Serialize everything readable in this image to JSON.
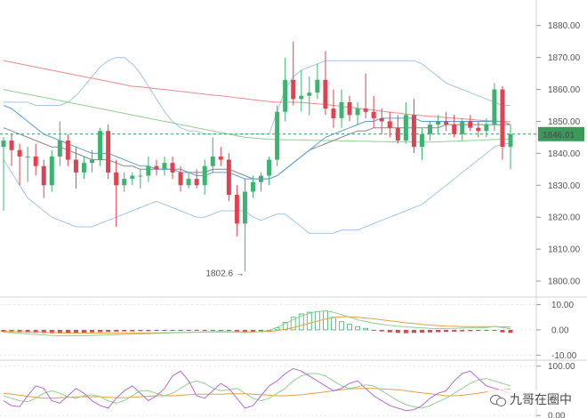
{
  "chart_data": [
    {
      "type": "candlestick",
      "panel": "price",
      "ylim": [
        1795,
        1888
      ],
      "yticks": [
        "1880.00",
        "1870.00",
        "1860.00",
        "1850.00",
        "1840.00",
        "1830.00",
        "1820.00",
        "1810.00",
        "1800.00"
      ],
      "current_price_label": "1846.01",
      "current_price": 1846.01,
      "low_annotation": "1802.6 →",
      "low_value": 1802.6,
      "candles": [
        [
          1842,
          1845,
          1822,
          1844
        ],
        [
          1844,
          1846,
          1836,
          1841
        ],
        [
          1841,
          1843,
          1830,
          1839
        ],
        [
          1839,
          1842,
          1831,
          1839
        ],
        [
          1839,
          1843,
          1833,
          1836
        ],
        [
          1836,
          1838,
          1826,
          1830
        ],
        [
          1830,
          1841,
          1828,
          1839
        ],
        [
          1839,
          1850,
          1836,
          1844
        ],
        [
          1844,
          1846,
          1836,
          1838
        ],
        [
          1838,
          1842,
          1829,
          1834
        ],
        [
          1834,
          1839,
          1832,
          1837
        ],
        [
          1837,
          1841,
          1834,
          1838
        ],
        [
          1838,
          1848,
          1836,
          1847
        ],
        [
          1847,
          1849,
          1832,
          1834
        ],
        [
          1834,
          1838,
          1817,
          1830
        ],
        [
          1830,
          1834,
          1828,
          1832
        ],
        [
          1832,
          1834,
          1830,
          1833
        ],
        [
          1833,
          1835,
          1829,
          1833
        ],
        [
          1833,
          1839,
          1831,
          1836
        ],
        [
          1836,
          1838,
          1833,
          1835
        ],
        [
          1835,
          1839,
          1833,
          1837
        ],
        [
          1837,
          1839,
          1832,
          1834
        ],
        [
          1834,
          1836,
          1828,
          1830
        ],
        [
          1830,
          1834,
          1829,
          1832
        ],
        [
          1832,
          1835,
          1829,
          1830
        ],
        [
          1830,
          1838,
          1827,
          1836
        ],
        [
          1836,
          1845,
          1834,
          1839
        ],
        [
          1839,
          1842,
          1836,
          1838
        ],
        [
          1838,
          1840,
          1825,
          1827
        ],
        [
          1827,
          1830,
          1814,
          1818
        ],
        [
          1818,
          1832,
          1803,
          1828
        ],
        [
          1828,
          1833,
          1826,
          1831
        ],
        [
          1831,
          1834,
          1828,
          1833
        ],
        [
          1833,
          1839,
          1830,
          1838
        ],
        [
          1838,
          1855,
          1836,
          1853
        ],
        [
          1853,
          1870,
          1850,
          1863
        ],
        [
          1863,
          1875,
          1855,
          1857
        ],
        [
          1857,
          1866,
          1853,
          1858
        ],
        [
          1858,
          1864,
          1852,
          1859
        ],
        [
          1859,
          1868,
          1857,
          1863
        ],
        [
          1863,
          1872,
          1852,
          1854
        ],
        [
          1854,
          1860,
          1848,
          1851
        ],
        [
          1851,
          1860,
          1848,
          1856
        ],
        [
          1856,
          1858,
          1850,
          1852
        ],
        [
          1852,
          1856,
          1849,
          1854
        ],
        [
          1854,
          1865,
          1851,
          1853
        ],
        [
          1853,
          1858,
          1848,
          1851
        ],
        [
          1851,
          1854,
          1846,
          1850
        ],
        [
          1850,
          1853,
          1845,
          1848
        ],
        [
          1848,
          1852,
          1843,
          1844
        ],
        [
          1844,
          1856,
          1843,
          1852
        ],
        [
          1852,
          1857,
          1840,
          1842
        ],
        [
          1842,
          1848,
          1838,
          1846
        ],
        [
          1846,
          1850,
          1844,
          1849
        ],
        [
          1849,
          1852,
          1846,
          1850
        ],
        [
          1850,
          1853,
          1847,
          1849
        ],
        [
          1849,
          1852,
          1845,
          1846
        ],
        [
          1846,
          1851,
          1844,
          1850
        ],
        [
          1850,
          1852,
          1847,
          1848
        ],
        [
          1848,
          1850,
          1845,
          1847
        ],
        [
          1847,
          1851,
          1845,
          1849
        ],
        [
          1849,
          1862,
          1847,
          1860
        ],
        [
          1860,
          1861,
          1838,
          1842
        ],
        [
          1842,
          1849,
          1835,
          1846
        ]
      ],
      "ma_red_slow": [
        1869,
        1868.5,
        1868,
        1867.5,
        1867,
        1866.5,
        1866,
        1865.5,
        1865,
        1864.5,
        1864,
        1863.5,
        1863,
        1862.5,
        1862,
        1861.5,
        1861,
        1860.8,
        1860.5,
        1860.2,
        1860,
        1859.7,
        1859.4,
        1859.1,
        1858.8,
        1858.5,
        1858.2,
        1858,
        1857.7,
        1857.4,
        1857.1,
        1856.8,
        1856.5,
        1856.2,
        1856,
        1856,
        1856,
        1855.9,
        1855.7,
        1855.5,
        1855.3,
        1855,
        1854.7,
        1854.4,
        1854.1,
        1853.8,
        1853.5,
        1853.2,
        1852.9,
        1852.6,
        1852.3,
        1852,
        1851.8,
        1851.6,
        1851.4,
        1851.2,
        1851,
        1850.8,
        1850.6,
        1850.4,
        1850.2,
        1850.1,
        1850,
        1849.9
      ],
      "ma_green_slow": [
        1860,
        1859.5,
        1859,
        1858.5,
        1858,
        1857.5,
        1857,
        1856.5,
        1856,
        1855.5,
        1855,
        1854.5,
        1854,
        1853.5,
        1853,
        1852.5,
        1852,
        1851.5,
        1851,
        1850.5,
        1850,
        1849.5,
        1849,
        1848.5,
        1848,
        1847.5,
        1847,
        1846.5,
        1846,
        1845.5,
        1845,
        1844.8,
        1844.6,
        1844.4,
        1844.3,
        1844.2,
        1844.2,
        1844.2,
        1844.1,
        1844.1,
        1844,
        1844,
        1843.9,
        1843.9,
        1843.8,
        1843.8,
        1843.7,
        1843.7,
        1843.6,
        1843.6,
        1843.5,
        1843.5,
        1843.5,
        1843.5,
        1843.6,
        1843.7,
        1843.8,
        1843.9,
        1844,
        1844.1,
        1844.2,
        1844.3,
        1844.4,
        1844.5
      ],
      "bb_upper": [
        1856,
        1856,
        1856,
        1856,
        1855,
        1855,
        1855,
        1855,
        1856,
        1858,
        1861,
        1864,
        1867,
        1869,
        1870,
        1870,
        1868,
        1865,
        1861,
        1857,
        1853,
        1850,
        1848,
        1847,
        1847,
        1846,
        1846,
        1846,
        1846,
        1846,
        1846,
        1846,
        1846,
        1846,
        1853,
        1860,
        1864,
        1866,
        1867,
        1868,
        1869,
        1869,
        1869,
        1869,
        1869,
        1869,
        1869,
        1869,
        1869,
        1869,
        1869,
        1869,
        1868,
        1866,
        1864,
        1862,
        1861,
        1860,
        1859,
        1858,
        1857,
        1856,
        1855,
        1855
      ],
      "bb_lower": [
        1838,
        1834,
        1830,
        1826,
        1824,
        1822,
        1820,
        1819,
        1818,
        1817,
        1817,
        1817,
        1818,
        1819,
        1820,
        1821,
        1822,
        1823,
        1824,
        1825,
        1824,
        1823,
        1822,
        1821,
        1820,
        1820,
        1821,
        1822,
        1822,
        1822,
        1822,
        1820,
        1819,
        1820,
        1821,
        1821,
        1819,
        1817,
        1815,
        1815,
        1815,
        1815,
        1816,
        1816,
        1816,
        1817,
        1818,
        1819,
        1820,
        1821,
        1822,
        1823,
        1824,
        1826,
        1828,
        1830,
        1832,
        1834,
        1836,
        1838,
        1840,
        1842,
        1843,
        1843
      ],
      "ma_blue": [
        1855,
        1854,
        1852,
        1850,
        1848,
        1846,
        1845,
        1844,
        1843,
        1842,
        1841,
        1840,
        1840,
        1840,
        1839,
        1838,
        1837,
        1836,
        1836,
        1835,
        1835,
        1835,
        1834,
        1834,
        1833,
        1833,
        1834,
        1834,
        1834,
        1833,
        1832,
        1832,
        1832,
        1832,
        1833,
        1835,
        1837,
        1839,
        1841,
        1843,
        1845,
        1846,
        1847,
        1848,
        1849,
        1850,
        1850,
        1851,
        1851,
        1851,
        1851,
        1851,
        1850,
        1850,
        1850,
        1850,
        1850,
        1850,
        1850,
        1850,
        1850,
        1850,
        1850,
        1849
      ],
      "ma_gray": [
        1848,
        1847,
        1846,
        1845,
        1844,
        1843,
        1842,
        1842,
        1841,
        1840,
        1839,
        1838,
        1838,
        1838,
        1837,
        1836,
        1836,
        1835,
        1835,
        1835,
        1835,
        1835,
        1835,
        1834,
        1834,
        1834,
        1835,
        1835,
        1835,
        1834,
        1833,
        1832,
        1832,
        1832,
        1833,
        1835,
        1837,
        1839,
        1841,
        1842,
        1843,
        1844,
        1845,
        1846,
        1847,
        1847,
        1848,
        1848,
        1848,
        1848,
        1848,
        1848,
        1848,
        1848,
        1848,
        1849,
        1849,
        1849,
        1849,
        1849,
        1849,
        1849,
        1849,
        1849
      ]
    },
    {
      "type": "histogram",
      "panel": "macd",
      "ylim": [
        -12,
        13
      ],
      "yticks": [
        "10.00",
        "0.00",
        "-10.00"
      ],
      "hist": [
        -0.8,
        -0.9,
        -1.0,
        -1.1,
        -1.2,
        -1.3,
        -1.4,
        -1.4,
        -1.3,
        -1.2,
        -1.1,
        -1.0,
        -0.9,
        -0.8,
        -0.7,
        -0.6,
        -0.6,
        -0.5,
        -0.5,
        -0.4,
        -0.4,
        -0.4,
        -0.4,
        -0.4,
        -0.4,
        -0.4,
        -0.3,
        -0.3,
        -0.4,
        -0.6,
        -0.8,
        -0.9,
        -0.9,
        -0.8,
        0.8,
        3.0,
        5.0,
        6.3,
        7.0,
        7.2,
        7.5,
        5.0,
        3.2,
        2.2,
        1.3,
        0.6,
        -0.2,
        -0.6,
        -1.0,
        -1.2,
        -1.3,
        -1.2,
        -1.1,
        -1.0,
        -0.9,
        -0.8,
        -0.7,
        -0.6,
        -0.5,
        -0.4,
        -0.3,
        -0.2,
        -1.0,
        -1.2
      ],
      "macd_line": [
        -1,
        -1.2,
        -1.4,
        -1.6,
        -1.8,
        -2,
        -2.2,
        -2.3,
        -2.3,
        -2.3,
        -2.3,
        -2.2,
        -2.1,
        -2,
        -1.9,
        -1.8,
        -1.7,
        -1.6,
        -1.5,
        -1.4,
        -1.3,
        -1.2,
        -1.1,
        -1.0,
        -0.9,
        -0.8,
        -0.7,
        -0.6,
        -0.7,
        -0.9,
        -1.1,
        -0.9,
        -0.6,
        -0.2,
        1.0,
        2.5,
        4.0,
        5.5,
        6.6,
        7.3,
        7.5,
        7.0,
        6.0,
        5.0,
        4.0,
        3.3,
        2.7,
        2.2,
        1.8,
        1.5,
        1.2,
        1.0,
        0.8,
        0.6,
        0.5,
        0.5,
        0.6,
        0.7,
        0.8,
        0.8,
        0.9,
        1.4,
        0.9,
        0.4
      ],
      "signal_line": [
        -0.5,
        -0.6,
        -0.7,
        -0.8,
        -0.9,
        -1.0,
        -1.1,
        -1.2,
        -1.3,
        -1.3,
        -1.3,
        -1.3,
        -1.3,
        -1.3,
        -1.3,
        -1.3,
        -1.3,
        -1.3,
        -1.2,
        -1.2,
        -1.1,
        -1.1,
        -1.0,
        -1.0,
        -0.9,
        -0.9,
        -0.8,
        -0.8,
        -0.8,
        -0.8,
        -0.8,
        -0.8,
        -0.7,
        -0.6,
        -0.3,
        0.2,
        0.9,
        1.7,
        2.6,
        3.5,
        4.3,
        4.9,
        5.2,
        5.2,
        5.0,
        4.7,
        4.4,
        4.0,
        3.6,
        3.2,
        2.8,
        2.5,
        2.2,
        1.9,
        1.7,
        1.5,
        1.4,
        1.3,
        1.3,
        1.3,
        1.3,
        1.3,
        1.2,
        1.1
      ]
    },
    {
      "type": "line",
      "panel": "stochastic",
      "ylim": [
        -5,
        112
      ],
      "yticks": [
        "100.00",
        "0.00"
      ],
      "k_line": [
        30,
        20,
        18,
        40,
        60,
        55,
        30,
        25,
        40,
        55,
        45,
        30,
        20,
        15,
        35,
        50,
        60,
        45,
        30,
        40,
        55,
        80,
        90,
        70,
        40,
        35,
        50,
        65,
        55,
        35,
        15,
        20,
        40,
        60,
        70,
        85,
        95,
        90,
        80,
        70,
        60,
        50,
        55,
        65,
        70,
        55,
        40,
        30,
        20,
        15,
        10,
        12,
        20,
        35,
        45,
        50,
        70,
        85,
        90,
        75,
        60,
        55,
        50,
        45
      ],
      "d_line": [
        40,
        35,
        30,
        28,
        35,
        45,
        50,
        45,
        38,
        35,
        40,
        42,
        38,
        30,
        25,
        30,
        40,
        50,
        50,
        45,
        40,
        45,
        55,
        65,
        70,
        65,
        55,
        50,
        52,
        55,
        45,
        35,
        30,
        35,
        45,
        55,
        70,
        80,
        85,
        85,
        80,
        70,
        60,
        55,
        58,
        62,
        60,
        50,
        40,
        30,
        22,
        18,
        15,
        20,
        28,
        35,
        45,
        55,
        65,
        72,
        75,
        70,
        65,
        60
      ],
      "j_line": [
        45,
        43,
        41,
        39,
        37,
        35,
        35,
        36,
        37,
        38,
        38,
        38,
        38,
        37,
        36,
        36,
        37,
        38,
        39,
        40,
        40,
        40,
        41,
        42,
        43,
        43,
        43,
        43,
        44,
        44,
        44,
        43,
        42,
        41,
        40,
        40,
        41,
        42,
        44,
        46,
        48,
        50,
        52,
        54,
        55,
        55,
        55,
        54,
        53,
        52,
        50,
        48,
        46,
        44,
        42,
        40,
        40,
        41,
        43,
        45,
        48,
        50,
        52,
        53
      ]
    }
  ],
  "watermark": {
    "text": "九哥在圈中",
    "icon": "wechat-icon"
  },
  "colors": {
    "up": "#3cb371",
    "down": "#e0434f",
    "red_ma": "#f08a8a",
    "green_ma": "#8fd18f",
    "bb": "#9fc6ef",
    "blue_ma": "#5aa0d8",
    "gray_ma": "#888888",
    "purple": "#b56bd6",
    "orange": "#e8a040",
    "price_tag": "#3a9a5a"
  }
}
